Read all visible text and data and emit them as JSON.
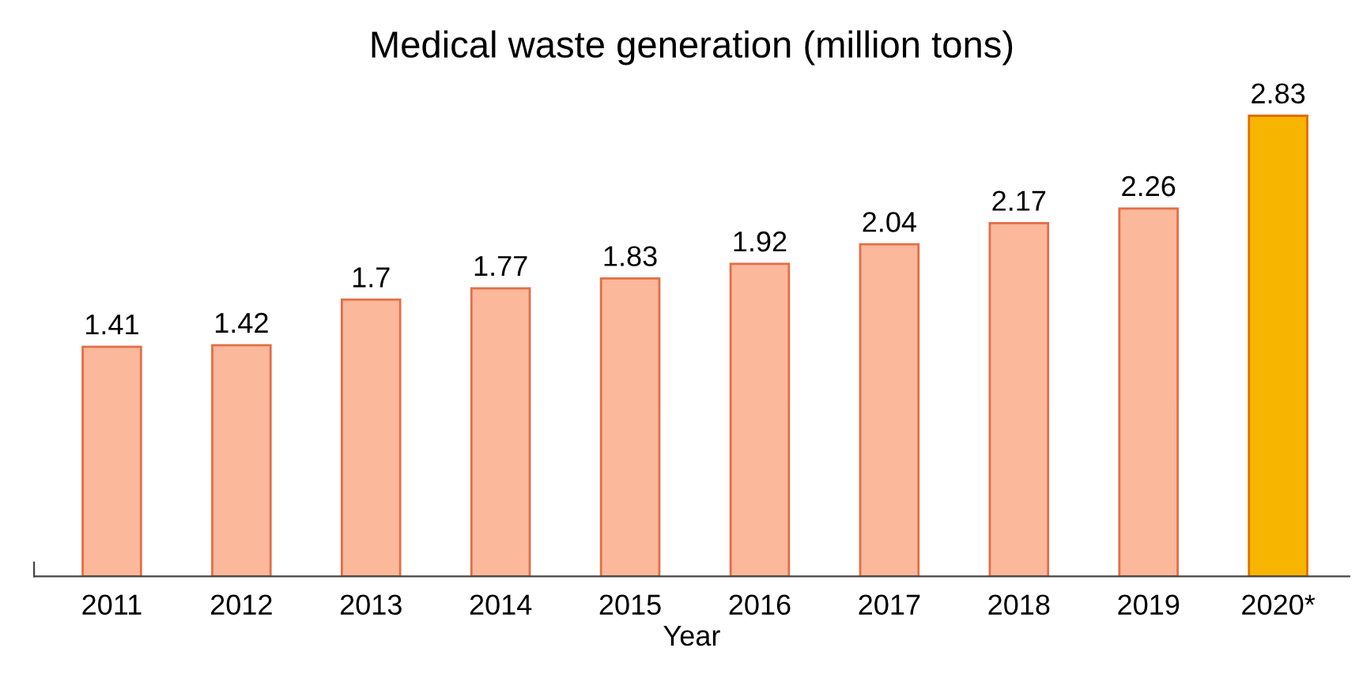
{
  "chart_data": {
    "type": "bar",
    "title": "Medical waste generation (million tons)",
    "xlabel": "Year",
    "categories": [
      "2011",
      "2012",
      "2013",
      "2014",
      "2015",
      "2016",
      "2017",
      "2018",
      "2019",
      "2020*"
    ],
    "values": [
      1.41,
      1.42,
      1.7,
      1.77,
      1.83,
      1.92,
      2.04,
      2.17,
      2.26,
      2.83
    ],
    "colors": [
      "#fbb89b",
      "#fbb89b",
      "#fbb89b",
      "#fbb89b",
      "#fbb89b",
      "#fbb89b",
      "#fbb89b",
      "#fbb89b",
      "#fbb89b",
      "#f7b500"
    ],
    "data_labels": true,
    "grid": false,
    "legend": false
  }
}
